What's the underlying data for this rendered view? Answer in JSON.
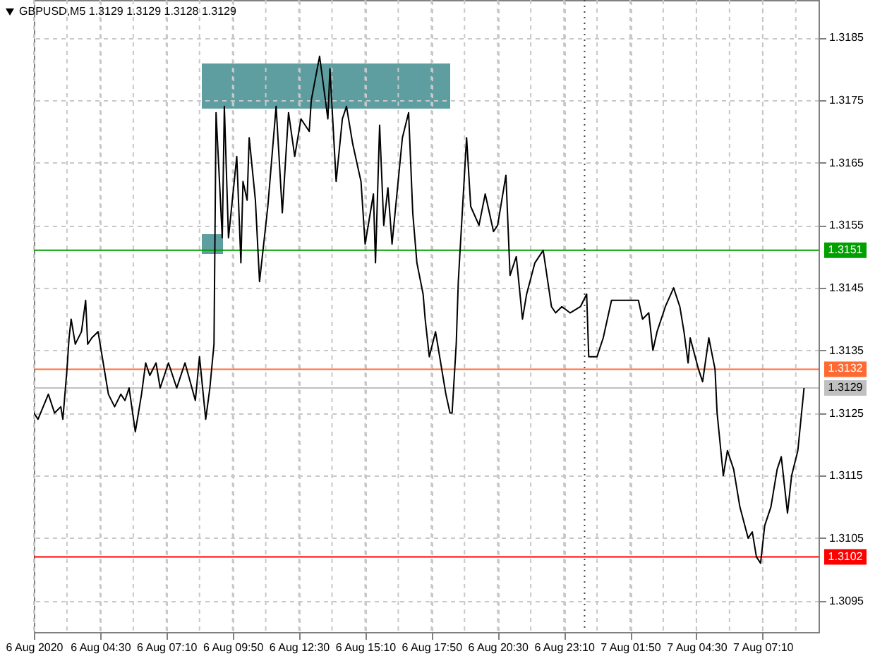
{
  "chart_data": {
    "type": "line",
    "title": "GBPUSD,M5 1.3129 1.3129 1.3128 1.3129",
    "xlim": [
      "2020-08-06T01:50",
      "2020-08-07T09:25"
    ],
    "ylim": [
      1.309,
      1.3191
    ],
    "xticks": [
      {
        "value": "2020-08-06T01:50",
        "label": "6 Aug 2020"
      },
      {
        "value": "2020-08-06T03:10",
        "label": null
      },
      {
        "value": "2020-08-06T04:30",
        "label": "6 Aug 04:30"
      },
      {
        "value": "2020-08-06T05:50",
        "label": null
      },
      {
        "value": "2020-08-06T07:10",
        "label": "6 Aug 07:10"
      },
      {
        "value": "2020-08-06T08:30",
        "label": null
      },
      {
        "value": "2020-08-06T09:50",
        "label": "6 Aug 09:50"
      },
      {
        "value": "2020-08-06T11:10",
        "label": null
      },
      {
        "value": "2020-08-06T12:30",
        "label": "6 Aug 12:30"
      },
      {
        "value": "2020-08-06T13:50",
        "label": null
      },
      {
        "value": "2020-08-06T15:10",
        "label": "6 Aug 15:10"
      },
      {
        "value": "2020-08-06T16:30",
        "label": null
      },
      {
        "value": "2020-08-06T17:50",
        "label": "6 Aug 17:50"
      },
      {
        "value": "2020-08-06T19:10",
        "label": null
      },
      {
        "value": "2020-08-06T20:30",
        "label": "6 Aug 20:30"
      },
      {
        "value": "2020-08-06T21:50",
        "label": null
      },
      {
        "value": "2020-08-06T23:10",
        "label": "6 Aug 23:10"
      },
      {
        "value": "2020-08-07T00:30",
        "label": null
      },
      {
        "value": "2020-08-07T01:50",
        "label": "7 Aug 01:50"
      },
      {
        "value": "2020-08-07T03:10",
        "label": null
      },
      {
        "value": "2020-08-07T04:30",
        "label": "7 Aug 04:30"
      },
      {
        "value": "2020-08-07T05:50",
        "label": null
      },
      {
        "value": "2020-08-07T07:10",
        "label": "7 Aug 07:10"
      },
      {
        "value": "2020-08-07T08:30",
        "label": null
      }
    ],
    "yticks": [
      1.3095,
      1.3105,
      1.3115,
      1.3125,
      1.3135,
      1.3145,
      1.3155,
      1.3165,
      1.3175,
      1.3185
    ],
    "grid": true,
    "series": [
      {
        "color": "#000000",
        "x": [
          "2020-08-06T01:50",
          "2020-08-06T02:00",
          "2020-08-06T02:25",
          "2020-08-06T02:40",
          "2020-08-06T02:55",
          "2020-08-06T03:00",
          "2020-08-06T03:10",
          "2020-08-06T03:15",
          "2020-08-06T03:20",
          "2020-08-06T03:30",
          "2020-08-06T03:45",
          "2020-08-06T03:55",
          "2020-08-06T04:00",
          "2020-08-06T04:10",
          "2020-08-06T04:25",
          "2020-08-06T04:35",
          "2020-08-06T04:50",
          "2020-08-06T05:05",
          "2020-08-06T05:20",
          "2020-08-06T05:30",
          "2020-08-06T05:40",
          "2020-08-06T05:55",
          "2020-08-06T06:10",
          "2020-08-06T06:20",
          "2020-08-06T06:30",
          "2020-08-06T06:45",
          "2020-08-06T06:55",
          "2020-08-06T07:15",
          "2020-08-06T07:35",
          "2020-08-06T07:55",
          "2020-08-06T08:20",
          "2020-08-06T08:30",
          "2020-08-06T08:45",
          "2020-08-06T08:55",
          "2020-08-06T09:05",
          "2020-08-06T09:10",
          "2020-08-06T09:25",
          "2020-08-06T09:30",
          "2020-08-06T09:40",
          "2020-08-06T10:00",
          "2020-08-06T10:10",
          "2020-08-06T10:15",
          "2020-08-06T10:25",
          "2020-08-06T10:30",
          "2020-08-06T10:45",
          "2020-08-06T10:55",
          "2020-08-06T11:15",
          "2020-08-06T11:35",
          "2020-08-06T11:50",
          "2020-08-06T12:05",
          "2020-08-06T12:20",
          "2020-08-06T12:35",
          "2020-08-06T12:55",
          "2020-08-06T13:00",
          "2020-08-06T13:20",
          "2020-08-06T13:30",
          "2020-08-06T13:40",
          "2020-08-06T13:45",
          "2020-08-06T14:00",
          "2020-08-06T14:15",
          "2020-08-06T14:25",
          "2020-08-06T14:40",
          "2020-08-06T15:00",
          "2020-08-06T15:10",
          "2020-08-06T15:30",
          "2020-08-06T15:35",
          "2020-08-06T15:45",
          "2020-08-06T15:55",
          "2020-08-06T16:05",
          "2020-08-06T16:15",
          "2020-08-06T16:40",
          "2020-08-06T16:55",
          "2020-08-06T17:05",
          "2020-08-06T17:15",
          "2020-08-06T17:30",
          "2020-08-06T17:35",
          "2020-08-06T17:45",
          "2020-08-06T18:00",
          "2020-08-06T18:15",
          "2020-08-06T18:25",
          "2020-08-06T18:35",
          "2020-08-06T18:40",
          "2020-08-06T18:50",
          "2020-08-06T18:55",
          "2020-08-06T19:15",
          "2020-08-06T19:25",
          "2020-08-06T19:45",
          "2020-08-06T20:00",
          "2020-08-06T20:20",
          "2020-08-06T20:30",
          "2020-08-06T20:50",
          "2020-08-06T21:00",
          "2020-08-06T21:15",
          "2020-08-06T21:30",
          "2020-08-06T21:40",
          "2020-08-06T22:00",
          "2020-08-06T22:20",
          "2020-08-06T22:40",
          "2020-08-06T22:50",
          "2020-08-06T23:05",
          "2020-08-06T23:25",
          "2020-08-06T23:50",
          "2020-08-07T00:05",
          "2020-08-07T00:10",
          "2020-08-07T00:30",
          "2020-08-07T00:45",
          "2020-08-07T01:05",
          "2020-08-07T01:25",
          "2020-08-07T02:10",
          "2020-08-07T02:20",
          "2020-08-07T02:35",
          "2020-08-07T02:45",
          "2020-08-07T02:55",
          "2020-08-07T03:15",
          "2020-08-07T03:35",
          "2020-08-07T03:50",
          "2020-08-07T04:00",
          "2020-08-07T04:10",
          "2020-08-07T04:15",
          "2020-08-07T04:35",
          "2020-08-07T04:45",
          "2020-08-07T05:00",
          "2020-08-07T05:15",
          "2020-08-07T05:20",
          "2020-08-07T05:35",
          "2020-08-07T05:45",
          "2020-08-07T06:00",
          "2020-08-07T06:15",
          "2020-08-07T06:35",
          "2020-08-07T06:45",
          "2020-08-07T06:55",
          "2020-08-07T07:05",
          "2020-08-07T07:15",
          "2020-08-07T07:30",
          "2020-08-07T07:45",
          "2020-08-07T07:55",
          "2020-08-07T08:10",
          "2020-08-07T08:20",
          "2020-08-07T08:35",
          "2020-08-07T08:50"
        ],
        "values": [
          1.3125,
          1.3124,
          1.3128,
          1.3125,
          1.3126,
          1.3124,
          1.3132,
          1.3137,
          1.314,
          1.3136,
          1.3138,
          1.3143,
          1.3136,
          1.3137,
          1.3138,
          1.3134,
          1.3128,
          1.3126,
          1.3128,
          1.3127,
          1.3129,
          1.3122,
          1.3128,
          1.3133,
          1.3131,
          1.3133,
          1.3129,
          1.3133,
          1.3129,
          1.3133,
          1.3127,
          1.3134,
          1.3124,
          1.3129,
          1.3136,
          1.3173,
          1.3153,
          1.3174,
          1.3153,
          1.3166,
          1.3149,
          1.3162,
          1.3159,
          1.3169,
          1.3159,
          1.3146,
          1.3158,
          1.3174,
          1.3157,
          1.3173,
          1.3166,
          1.3172,
          1.317,
          1.3175,
          1.3182,
          1.3177,
          1.3172,
          1.318,
          1.3162,
          1.3172,
          1.3174,
          1.3168,
          1.3162,
          1.3152,
          1.316,
          1.3149,
          1.3171,
          1.3155,
          1.3161,
          1.3152,
          1.3169,
          1.3173,
          1.3157,
          1.3149,
          1.3144,
          1.314,
          1.3134,
          1.3138,
          1.3132,
          1.3128,
          1.3125,
          1.3125,
          1.3136,
          1.3146,
          1.3169,
          1.3158,
          1.3155,
          1.316,
          1.3154,
          1.3155,
          1.3163,
          1.3147,
          1.315,
          1.314,
          1.3144,
          1.3149,
          1.3151,
          1.3142,
          1.3141,
          1.3142,
          1.3141,
          1.3142,
          1.3144,
          1.3134,
          1.3134,
          1.3137,
          1.3143,
          1.3143,
          1.3143,
          1.314,
          1.3141,
          1.3135,
          1.3138,
          1.3142,
          1.3145,
          1.3142,
          1.3138,
          1.3133,
          1.3137,
          1.3132,
          1.313,
          1.3137,
          1.3132,
          1.3125,
          1.3115,
          1.3119,
          1.3116,
          1.311,
          1.3105,
          1.3106,
          1.3102,
          1.3101,
          1.3107,
          1.311,
          1.3116,
          1.3118,
          1.3109,
          1.3115,
          1.3119,
          1.3129
        ]
      }
    ],
    "ref_lines": [
      {
        "axis": "y",
        "value": 1.3151,
        "label": "1.3151",
        "color": "#00a000"
      },
      {
        "axis": "y",
        "value": 1.3132,
        "label": "1.3132",
        "color": "#ff6a33"
      },
      {
        "axis": "y",
        "value": 1.3129,
        "label": "1.3129",
        "color": "#c0c0c0"
      },
      {
        "axis": "y",
        "value": 1.3102,
        "label": "1.3102",
        "color": "#ff0000"
      },
      {
        "axis": "x",
        "value": "2020-08-07T00:00",
        "color": "#444444",
        "line_style": "dotted"
      }
    ]
  }
}
